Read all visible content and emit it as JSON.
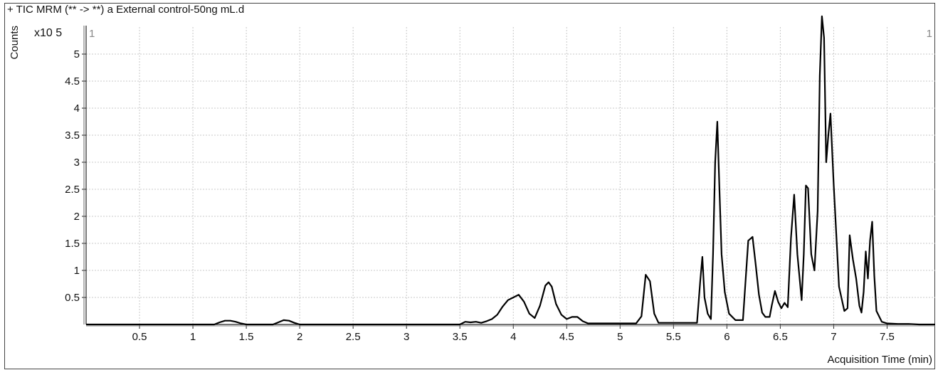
{
  "header": {
    "title": "+ TIC MRM (** -> **) a External control-50ng mL.d"
  },
  "chart_data": {
    "type": "line",
    "title": "+ TIC MRM (** -> **) a External control-50ng mL.d",
    "xlabel": "Acquisition Time (min)",
    "ylabel": "Counts",
    "y_scale_label": "x10 5",
    "marker_labels": [
      "1",
      "1"
    ],
    "xlim": [
      0.0,
      7.95
    ],
    "ylim": [
      0.0,
      5.5
    ],
    "x_ticks": [
      0.5,
      1,
      1.5,
      2,
      2.5,
      3,
      3.5,
      4,
      4.5,
      5,
      5.5,
      6,
      6.5,
      7,
      7.5
    ],
    "x_tick_labels": [
      "0.5",
      "1",
      "1.5",
      "2",
      "2.5",
      "3",
      "3.5",
      "4",
      "4.5",
      "5",
      "5.5",
      "6",
      "6.5",
      "7",
      "7.5"
    ],
    "y_ticks": [
      0.5,
      1,
      1.5,
      2,
      2.5,
      3,
      3.5,
      4,
      4.5,
      5
    ],
    "y_tick_labels": [
      "0.5",
      "1",
      "1.5",
      "2",
      "2.5",
      "3",
      "3.5",
      "4",
      "4.5",
      "5"
    ],
    "grid": true,
    "series": [
      {
        "color": "#000000",
        "x": [
          0.0,
          1.2,
          1.25,
          1.3,
          1.35,
          1.4,
          1.45,
          1.5,
          1.75,
          1.8,
          1.85,
          1.9,
          1.95,
          2.0,
          3.5,
          3.55,
          3.6,
          3.65,
          3.7,
          3.75,
          3.8,
          3.85,
          3.9,
          3.95,
          4.0,
          4.05,
          4.1,
          4.15,
          4.2,
          4.25,
          4.3,
          4.33,
          4.36,
          4.4,
          4.45,
          4.5,
          4.55,
          4.6,
          4.65,
          4.7,
          5.15,
          5.2,
          5.24,
          5.28,
          5.32,
          5.36,
          5.72,
          5.75,
          5.77,
          5.79,
          5.82,
          5.85,
          5.87,
          5.89,
          5.91,
          5.93,
          5.95,
          5.98,
          6.02,
          6.08,
          6.15,
          6.2,
          6.24,
          6.27,
          6.3,
          6.33,
          6.36,
          6.4,
          6.42,
          6.45,
          6.48,
          6.51,
          6.54,
          6.57,
          6.6,
          6.63,
          6.66,
          6.7,
          6.72,
          6.74,
          6.76,
          6.79,
          6.82,
          6.85,
          6.87,
          6.89,
          6.91,
          6.93,
          6.95,
          6.97,
          7.0,
          7.05,
          7.1,
          7.13,
          7.15,
          7.18,
          7.21,
          7.24,
          7.26,
          7.28,
          7.3,
          7.32,
          7.34,
          7.36,
          7.38,
          7.4,
          7.45,
          7.5,
          7.6,
          7.7,
          7.8,
          7.95
        ],
        "y": [
          0.0,
          0.0,
          0.04,
          0.07,
          0.07,
          0.05,
          0.02,
          0.0,
          0.0,
          0.04,
          0.08,
          0.07,
          0.03,
          0.0,
          0.0,
          0.05,
          0.04,
          0.05,
          0.03,
          0.06,
          0.1,
          0.18,
          0.33,
          0.45,
          0.5,
          0.55,
          0.42,
          0.2,
          0.12,
          0.35,
          0.72,
          0.78,
          0.7,
          0.38,
          0.18,
          0.1,
          0.14,
          0.14,
          0.06,
          0.02,
          0.02,
          0.15,
          0.92,
          0.8,
          0.2,
          0.03,
          0.03,
          0.8,
          1.25,
          0.5,
          0.2,
          0.1,
          1.3,
          3.0,
          3.75,
          2.5,
          1.3,
          0.6,
          0.2,
          0.08,
          0.08,
          1.55,
          1.62,
          1.1,
          0.55,
          0.22,
          0.14,
          0.14,
          0.35,
          0.62,
          0.42,
          0.3,
          0.4,
          0.32,
          1.6,
          2.4,
          1.3,
          0.45,
          1.3,
          2.57,
          2.52,
          1.3,
          1.0,
          2.1,
          4.6,
          5.7,
          5.3,
          3.0,
          3.5,
          3.9,
          2.6,
          0.7,
          0.25,
          0.3,
          1.65,
          1.2,
          0.85,
          0.35,
          0.22,
          0.6,
          1.35,
          0.85,
          1.55,
          1.9,
          0.9,
          0.25,
          0.05,
          0.02,
          0.01,
          0.01,
          0.0,
          0.0
        ]
      }
    ]
  }
}
